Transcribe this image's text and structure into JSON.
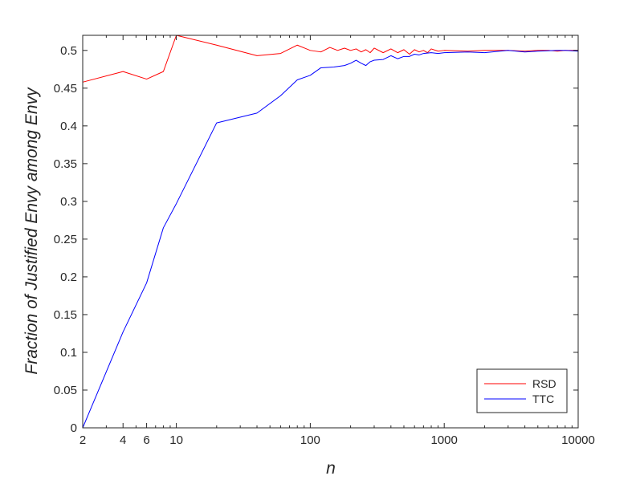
{
  "chart_data": {
    "type": "line",
    "xlabel": "n",
    "ylabel": "Fraction of Justified Envy among Envy",
    "xscale": "log",
    "xlim": [
      2,
      10000
    ],
    "ylim": [
      0,
      0.52
    ],
    "x_ticks": [
      2,
      4,
      6,
      10,
      100,
      1000,
      10000
    ],
    "x_tick_labels": [
      "2",
      "4",
      "6",
      "10",
      "100",
      "1000",
      "10000"
    ],
    "y_ticks": [
      0,
      0.05,
      0.1,
      0.15,
      0.2,
      0.25,
      0.3,
      0.35,
      0.4,
      0.45,
      0.5
    ],
    "y_tick_labels": [
      "0",
      "0.05",
      "0.1",
      "0.15",
      "0.2",
      "0.25",
      "0.3",
      "0.35",
      "0.4",
      "0.45",
      "0.5"
    ],
    "grid": false,
    "legend_position": "bottom-right",
    "series": [
      {
        "name": "RSD",
        "color": "#ff0000",
        "x": [
          2,
          4,
          6,
          8,
          10,
          20,
          40,
          60,
          80,
          100,
          120,
          140,
          160,
          180,
          200,
          220,
          240,
          260,
          280,
          300,
          350,
          400,
          450,
          500,
          550,
          600,
          650,
          700,
          750,
          800,
          900,
          1000,
          1500,
          2000,
          3000,
          4000,
          5000,
          6000,
          7000,
          8000,
          9000,
          10000
        ],
        "y": [
          0.458,
          0.472,
          0.462,
          0.472,
          0.52,
          0.507,
          0.493,
          0.496,
          0.507,
          0.5,
          0.498,
          0.504,
          0.5,
          0.503,
          0.5,
          0.502,
          0.498,
          0.501,
          0.497,
          0.503,
          0.497,
          0.502,
          0.497,
          0.501,
          0.495,
          0.501,
          0.498,
          0.5,
          0.497,
          0.502,
          0.499,
          0.5,
          0.499,
          0.5,
          0.5,
          0.499,
          0.5,
          0.5,
          0.499,
          0.5,
          0.5,
          0.5
        ]
      },
      {
        "name": "TTC",
        "color": "#0000ff",
        "x": [
          2,
          4,
          6,
          8,
          10,
          20,
          40,
          60,
          80,
          100,
          120,
          150,
          180,
          200,
          220,
          240,
          260,
          280,
          300,
          350,
          400,
          450,
          500,
          550,
          600,
          650,
          700,
          800,
          900,
          1000,
          1500,
          2000,
          3000,
          4000,
          5000,
          7000,
          8000,
          10000
        ],
        "y": [
          0.0,
          0.127,
          0.192,
          0.265,
          0.297,
          0.404,
          0.417,
          0.44,
          0.461,
          0.467,
          0.477,
          0.478,
          0.48,
          0.483,
          0.487,
          0.483,
          0.48,
          0.485,
          0.487,
          0.488,
          0.493,
          0.489,
          0.492,
          0.492,
          0.495,
          0.494,
          0.496,
          0.497,
          0.496,
          0.497,
          0.498,
          0.497,
          0.5,
          0.498,
          0.499,
          0.5,
          0.5,
          0.499
        ]
      }
    ]
  }
}
